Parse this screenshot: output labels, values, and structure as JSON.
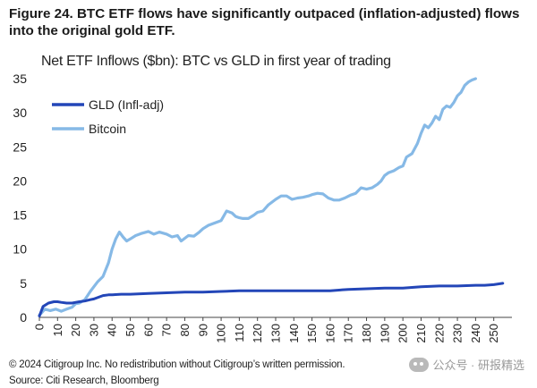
{
  "figure": {
    "title": "Figure 24. BTC ETF flows have significantly outpaced (inflation-adjusted) flows into the original gold ETF."
  },
  "footer": {
    "copyright": "© 2024 Citigroup Inc. No redistribution without Citigroup’s written permission.",
    "source": "Source: Citi Research, Bloomberg",
    "watermark": "公众号 · 研报精选"
  },
  "chart_data": {
    "type": "line",
    "title": "Net ETF Inflows ($bn): BTC vs GLD in first year of trading",
    "xlabel": "",
    "ylabel": "",
    "xlim": [
      0,
      260
    ],
    "ylim": [
      0,
      35
    ],
    "x_ticks": [
      "0",
      "10",
      "20",
      "30",
      "40",
      "50",
      "60",
      "70",
      "80",
      "90",
      "100",
      "110",
      "120",
      "130",
      "140",
      "150",
      "160",
      "170",
      "180",
      "190",
      "200",
      "210",
      "220",
      "230",
      "240",
      "250"
    ],
    "y_ticks": [
      "0",
      "5",
      "10",
      "15",
      "20",
      "25",
      "30",
      "35"
    ],
    "legend_position": "top-left",
    "grid": false,
    "series": [
      {
        "name": "GLD (Infl-adj)",
        "color": "#2346b8",
        "x": [
          0,
          2,
          5,
          8,
          10,
          12,
          15,
          18,
          20,
          22,
          25,
          28,
          30,
          33,
          35,
          38,
          40,
          45,
          50,
          60,
          70,
          80,
          90,
          100,
          110,
          120,
          130,
          140,
          150,
          160,
          170,
          180,
          190,
          200,
          210,
          220,
          230,
          240,
          245,
          250,
          255
        ],
        "values": [
          0.2,
          1.6,
          2.1,
          2.3,
          2.3,
          2.2,
          2.1,
          2.1,
          2.2,
          2.3,
          2.4,
          2.6,
          2.7,
          3.0,
          3.2,
          3.3,
          3.3,
          3.4,
          3.4,
          3.5,
          3.6,
          3.7,
          3.7,
          3.8,
          3.9,
          3.9,
          3.9,
          3.9,
          3.9,
          3.9,
          4.1,
          4.2,
          4.3,
          4.3,
          4.5,
          4.6,
          4.6,
          4.7,
          4.7,
          4.8,
          5.0
        ]
      },
      {
        "name": "Bitcoin",
        "color": "#86b9e6",
        "x": [
          0,
          3,
          6,
          9,
          12,
          15,
          18,
          20,
          22,
          25,
          28,
          30,
          32,
          35,
          38,
          40,
          42,
          44,
          46,
          48,
          50,
          53,
          56,
          60,
          63,
          66,
          70,
          73,
          76,
          78,
          80,
          82,
          85,
          88,
          90,
          93,
          96,
          98,
          100,
          103,
          106,
          108,
          110,
          112,
          115,
          118,
          120,
          123,
          126,
          130,
          133,
          136,
          139,
          142,
          145,
          148,
          150,
          153,
          156,
          159,
          162,
          165,
          168,
          171,
          174,
          177,
          180,
          183,
          186,
          188,
          190,
          192,
          195,
          198,
          200,
          202,
          205,
          208,
          210,
          212,
          214,
          216,
          218,
          220,
          222,
          224,
          226,
          228,
          230,
          232,
          234,
          236,
          238,
          240
        ],
        "values": [
          0.3,
          1.2,
          1.0,
          1.2,
          0.9,
          1.2,
          1.5,
          2.0,
          2.1,
          2.6,
          3.8,
          4.5,
          5.2,
          6.0,
          8.0,
          10.0,
          11.5,
          12.5,
          11.8,
          11.2,
          11.5,
          12.0,
          12.3,
          12.6,
          12.2,
          12.5,
          12.2,
          11.8,
          12.0,
          11.2,
          11.6,
          12.0,
          11.9,
          12.5,
          13.0,
          13.5,
          13.8,
          14.0,
          14.2,
          15.6,
          15.3,
          14.8,
          14.6,
          14.5,
          14.5,
          15.0,
          15.4,
          15.6,
          16.5,
          17.3,
          17.8,
          17.8,
          17.3,
          17.5,
          17.6,
          17.8,
          18.0,
          18.2,
          18.1,
          17.5,
          17.2,
          17.2,
          17.5,
          17.9,
          18.2,
          19.0,
          18.8,
          19.0,
          19.5,
          20.0,
          20.8,
          21.2,
          21.5,
          22.0,
          22.2,
          23.5,
          24.0,
          25.5,
          27.0,
          28.2,
          27.8,
          28.5,
          29.5,
          29.0,
          30.5,
          31.0,
          30.8,
          31.5,
          32.5,
          33.0,
          34.0,
          34.5,
          34.8,
          35.0
        ]
      }
    ]
  }
}
